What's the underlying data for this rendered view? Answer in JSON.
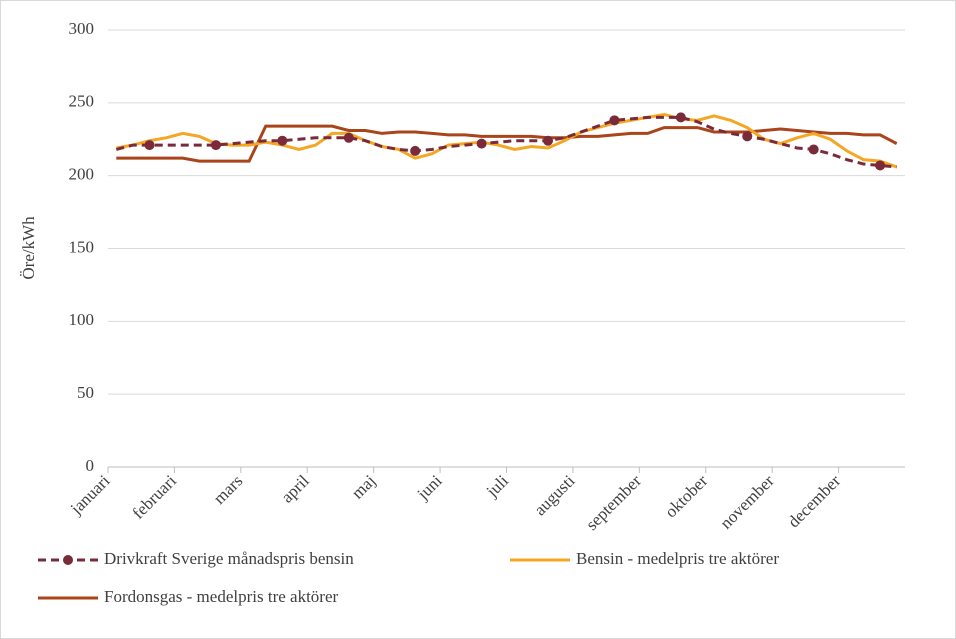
{
  "chart_data": {
    "type": "line",
    "ylabel": "Öre/kWh",
    "categories": [
      "januari",
      null,
      null,
      null,
      "februari",
      null,
      null,
      null,
      "mars",
      null,
      null,
      null,
      "april",
      null,
      null,
      null,
      "maj",
      null,
      null,
      null,
      "juni",
      null,
      null,
      null,
      "juli",
      null,
      null,
      null,
      "augusti",
      null,
      null,
      null,
      "september",
      null,
      null,
      null,
      "oktober",
      null,
      null,
      null,
      "november",
      null,
      null,
      null,
      "december",
      null,
      null,
      null
    ],
    "series": [
      {
        "name": "Drivkraft Sverige månadspris bensin",
        "color": "#7b2a3a",
        "dashed": true,
        "markers": true,
        "values": [
          218,
          221,
          221,
          221,
          221,
          221,
          221,
          222,
          223,
          224,
          224,
          225,
          226,
          226,
          226,
          224,
          220,
          218,
          217,
          218,
          220,
          221,
          222,
          223,
          224,
          224,
          224,
          226,
          230,
          234,
          238,
          239,
          240,
          240,
          240,
          237,
          232,
          229,
          227,
          225,
          222,
          219,
          218,
          215,
          211,
          208,
          207,
          206
        ]
      },
      {
        "name": "Bensin - medelpris tre aktörer",
        "color": "#f5a623",
        "values": [
          219,
          221,
          224,
          226,
          229,
          227,
          222,
          221,
          221,
          223,
          221,
          218,
          221,
          229,
          229,
          224,
          220,
          218,
          212,
          215,
          221,
          222,
          223,
          221,
          218,
          220,
          219,
          224,
          230,
          233,
          236,
          238,
          240,
          242,
          239,
          238,
          241,
          238,
          233,
          225,
          222,
          226,
          229,
          225,
          217,
          211,
          210,
          206
        ]
      },
      {
        "name": "Fordonsgas - medelpris tre aktörer",
        "color": "#a9441b",
        "values": [
          212,
          212,
          212,
          212,
          212,
          210,
          210,
          210,
          210,
          234,
          234,
          234,
          234,
          234,
          231,
          231,
          229,
          230,
          230,
          229,
          228,
          228,
          227,
          227,
          227,
          227,
          226,
          226,
          227,
          227,
          228,
          229,
          229,
          233,
          233,
          233,
          230,
          230,
          230,
          231,
          232,
          231,
          230,
          229,
          229,
          228,
          228,
          222
        ]
      }
    ],
    "ylim": [
      0,
      300
    ],
    "yticks": [
      0,
      50,
      100,
      150,
      200,
      250,
      300
    ],
    "grid": true
  }
}
